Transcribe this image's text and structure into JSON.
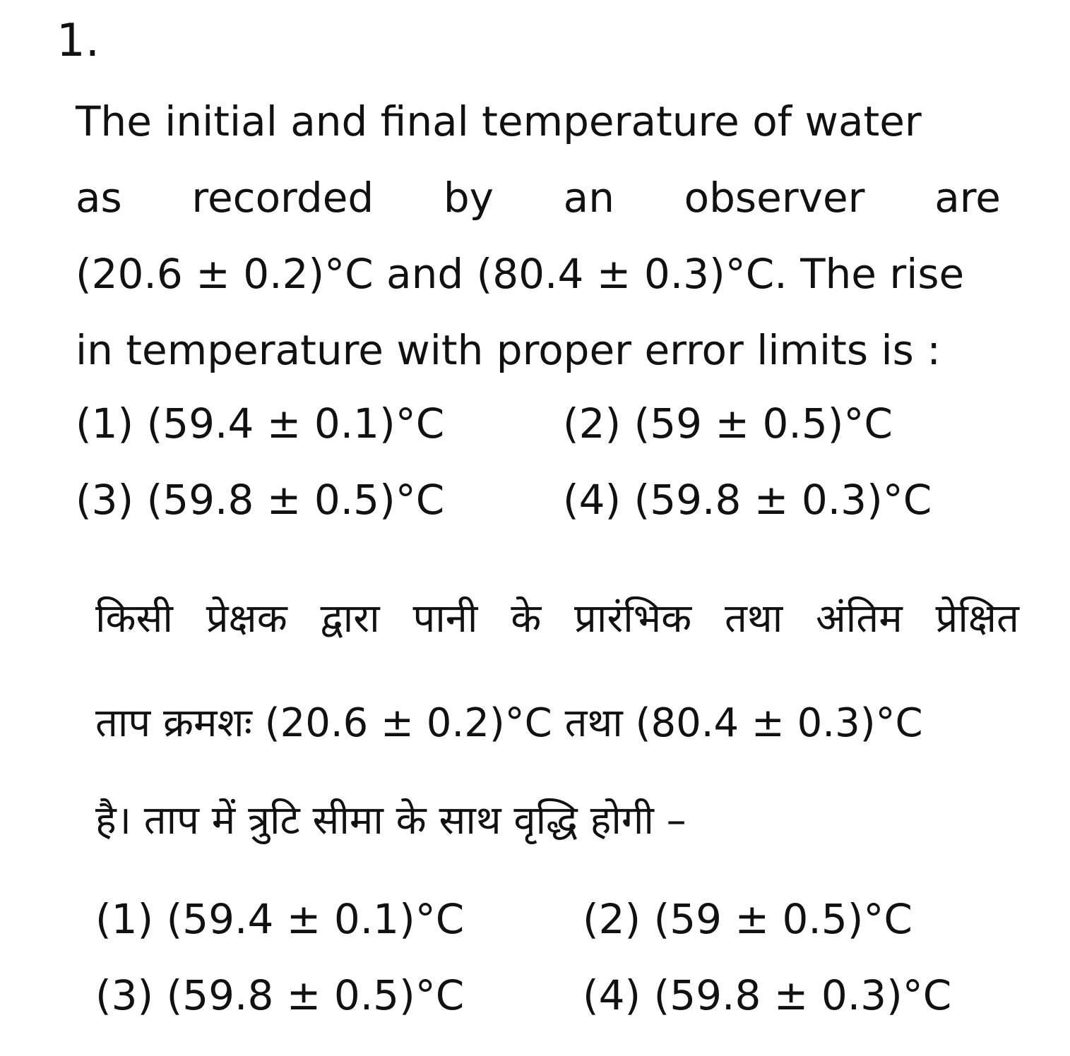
{
  "question": {
    "number": "1.",
    "english": {
      "line1": "The initial and final temperature of water",
      "line2_words": [
        "as",
        "recorded",
        "by",
        "an",
        "observer",
        "are"
      ],
      "line3": "(20.6 ± 0.2)°C and (80.4 ± 0.3)°C. The rise",
      "line4": "in temperature with proper error limits is :"
    },
    "options_en": [
      "(1) (59.4 ± 0.1)°C",
      "(2) (59 ± 0.5)°C",
      "(3) (59.8 ± 0.5)°C",
      "(4) (59.8 ± 0.3)°C"
    ],
    "hindi": {
      "line1_words": [
        "किसी",
        "प्रेक्षक",
        "द्वारा",
        "पानी",
        "के",
        "प्रारंभिक",
        "तथा",
        "अंतिम",
        "प्रेक्षित"
      ],
      "line2": "ताप क्रमशः (20.6 ± 0.2)°C तथा (80.4 ± 0.3)°C",
      "line3": "है। ताप में त्रुटि सीमा के साथ वृद्धि होगी –"
    },
    "options_hi": [
      "(1) (59.4 ± 0.1)°C",
      "(2) (59 ± 0.5)°C",
      "(3) (59.8 ± 0.5)°C",
      "(4) (59.8 ± 0.3)°C"
    ]
  }
}
